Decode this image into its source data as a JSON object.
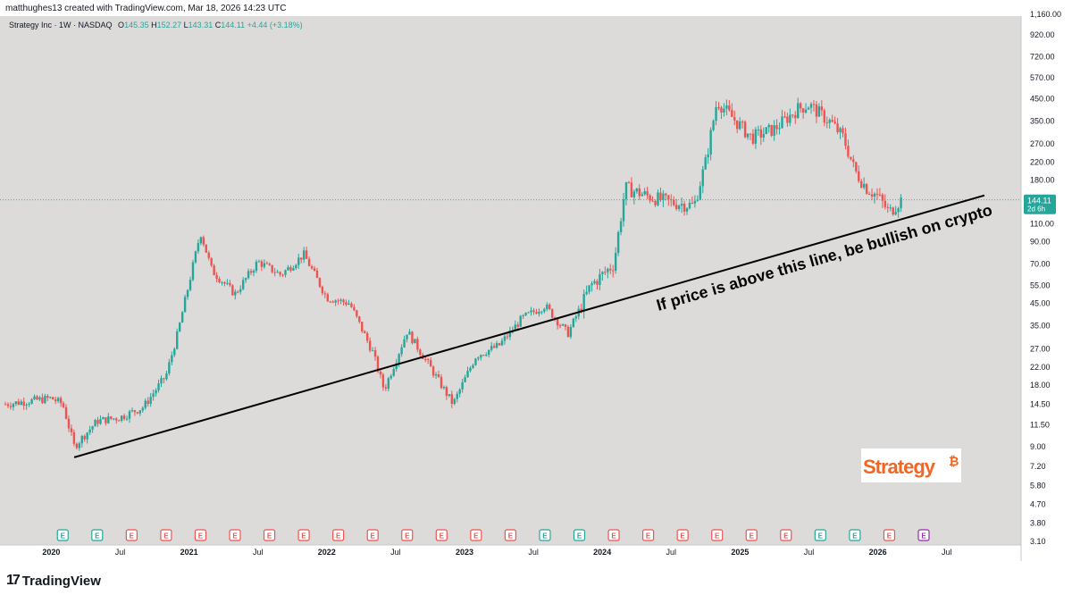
{
  "header": {
    "credit": "matthughes13 created with TradingView.com, Mar 18, 2026 14:23 UTC"
  },
  "legend": {
    "symbol": "Strategy Inc · 1W · NASDAQ",
    "open_label": "O",
    "open": "145.35",
    "high_label": "H",
    "high": "152.27",
    "low_label": "L",
    "low": "143.31",
    "close_label": "C",
    "close": "144.11",
    "change": "+4.44 (+3.18%)"
  },
  "price_tag": {
    "price": "144.11",
    "countdown": "2d 6h"
  },
  "annotation": "If price is above this line, be bullish on crypto",
  "logo": {
    "text": "Strategy",
    "mark": "₿",
    "color": "#f26522"
  },
  "footer": {
    "brand": "TradingView",
    "brand_mark": "17"
  },
  "earnings_marker_label": "E",
  "colors": {
    "up": "#26a69a",
    "down": "#ef5350",
    "background": "#dcdbda",
    "trendline": "#000000"
  },
  "chart_data": {
    "type": "candlestick",
    "scale": "log",
    "ylim": [
      3.1,
      1160
    ],
    "y_ticks": [
      "1,160.00",
      "920.00",
      "720.00",
      "570.00",
      "450.00",
      "350.00",
      "270.00",
      "220.00",
      "180.00",
      "144.11",
      "110.00",
      "90.00",
      "70.00",
      "55.00",
      "45.00",
      "35.00",
      "27.00",
      "22.00",
      "18.00",
      "14.50",
      "11.50",
      "9.00",
      "7.20",
      "5.80",
      "4.70",
      "3.80",
      "3.10"
    ],
    "x_ticks": [
      {
        "label": "2020",
        "bold": true
      },
      {
        "label": "Jul",
        "bold": false
      },
      {
        "label": "2021",
        "bold": true
      },
      {
        "label": "Jul",
        "bold": false
      },
      {
        "label": "2022",
        "bold": true
      },
      {
        "label": "Jul",
        "bold": false
      },
      {
        "label": "2023",
        "bold": true
      },
      {
        "label": "Jul",
        "bold": false
      },
      {
        "label": "2024",
        "bold": true
      },
      {
        "label": "Jul",
        "bold": false
      },
      {
        "label": "2025",
        "bold": true
      },
      {
        "label": "Jul",
        "bold": false
      },
      {
        "label": "2026",
        "bold": true
      },
      {
        "label": "Jul",
        "bold": false
      }
    ],
    "price_path": [
      [
        "2019-09",
        14.5
      ],
      [
        "2019-11",
        15.0
      ],
      [
        "2020-01",
        15.5
      ],
      [
        "2020-02",
        14.5
      ],
      [
        "2020-03",
        9.0
      ],
      [
        "2020-05",
        12.0
      ],
      [
        "2020-07",
        12.5
      ],
      [
        "2020-09",
        14.0
      ],
      [
        "2020-11",
        20.0
      ],
      [
        "2020-12",
        32.0
      ],
      [
        "2021-02",
        100.0
      ],
      [
        "2021-03",
        65.0
      ],
      [
        "2021-05",
        50.0
      ],
      [
        "2021-07",
        72.0
      ],
      [
        "2021-09",
        62.0
      ],
      [
        "2021-11",
        78.0
      ],
      [
        "2022-01",
        48.0
      ],
      [
        "2022-03",
        45.0
      ],
      [
        "2022-05",
        26.0
      ],
      [
        "2022-06",
        17.0
      ],
      [
        "2022-08",
        33.0
      ],
      [
        "2022-10",
        22.0
      ],
      [
        "2022-12",
        14.5
      ],
      [
        "2023-02",
        25.0
      ],
      [
        "2023-04",
        28.0
      ],
      [
        "2023-06",
        38.0
      ],
      [
        "2023-08",
        44.0
      ],
      [
        "2023-10",
        32.0
      ],
      [
        "2023-12",
        55.0
      ],
      [
        "2024-02",
        70.0
      ],
      [
        "2024-03",
        165.0
      ],
      [
        "2024-05",
        150.0
      ],
      [
        "2024-07",
        140.0
      ],
      [
        "2024-09",
        135.0
      ],
      [
        "2024-10",
        220.0
      ],
      [
        "2024-11",
        440.0
      ],
      [
        "2024-12",
        380.0
      ],
      [
        "2025-02",
        290.0
      ],
      [
        "2025-04",
        320.0
      ],
      [
        "2025-06",
        400.0
      ],
      [
        "2025-07",
        420.0
      ],
      [
        "2025-09",
        340.0
      ],
      [
        "2025-10",
        290.0
      ],
      [
        "2025-11",
        200.0
      ],
      [
        "2025-12",
        165.0
      ],
      [
        "2026-01",
        150.0
      ],
      [
        "2026-02",
        125.0
      ],
      [
        "2026-03",
        144.11
      ]
    ],
    "trendline": {
      "from": [
        "2020-03",
        9.0
      ],
      "to": [
        "2026-06",
        150.0
      ]
    },
    "current_price": 144.11,
    "grid": false
  }
}
